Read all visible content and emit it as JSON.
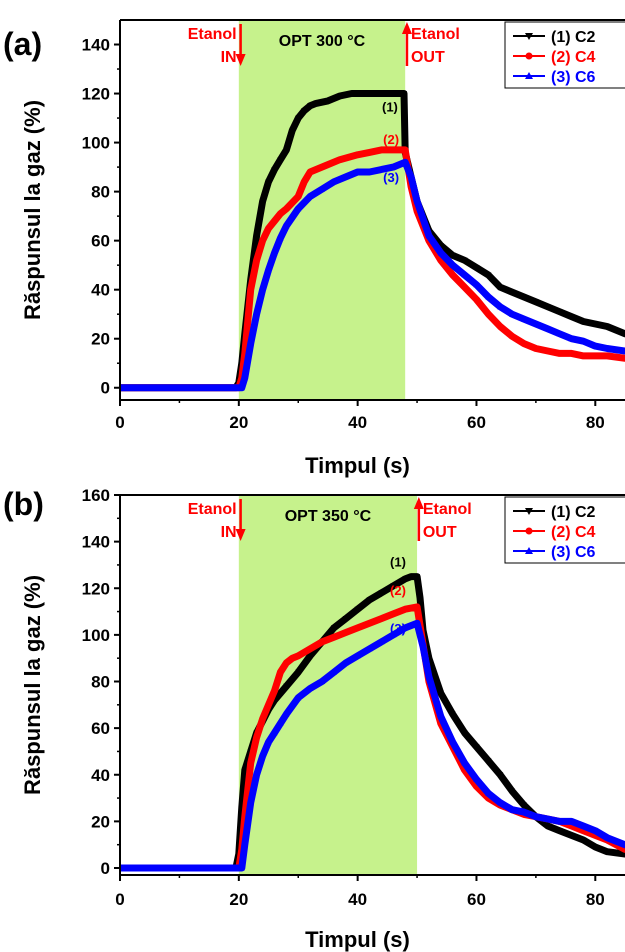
{
  "chart_data": [
    {
      "type": "line",
      "panel_label": "(a)",
      "xlabel": "Timpul (s)",
      "ylabel": "Răspunsul la gaz (%)",
      "xlim": [
        0,
        85
      ],
      "ylim": [
        -5,
        150
      ],
      "xticks": [
        0,
        20,
        40,
        60,
        80
      ],
      "yticks": [
        0,
        20,
        40,
        60,
        80,
        100,
        120,
        140
      ],
      "shaded_region": {
        "x": [
          20,
          48
        ],
        "color": "#c6f28c",
        "label": "OPT 300 °C"
      },
      "markers": {
        "in": {
          "x": 20.3,
          "label_top": "Etanol",
          "label_bottom": "IN"
        },
        "out": {
          "x": 48.3,
          "label_top": "Etanol",
          "label_bottom": "OUT"
        }
      },
      "series": [
        {
          "name": "(1) C2",
          "annotation": "(1)",
          "color": "#000000",
          "marker": "down-triangle",
          "x": [
            0,
            19.5,
            20,
            20.5,
            21,
            22,
            23,
            24,
            25,
            26,
            27,
            28,
            29,
            30,
            31,
            32,
            33,
            35,
            37,
            39,
            40,
            42,
            44,
            46,
            47,
            47.8,
            48,
            49,
            50,
            52,
            54,
            56,
            58,
            60,
            62,
            64,
            66,
            68,
            70,
            72,
            74,
            76,
            78,
            80,
            82,
            85
          ],
          "y": [
            0,
            0,
            2,
            10,
            22,
            44,
            62,
            76,
            84,
            89,
            93,
            97,
            105,
            110,
            113,
            115,
            116,
            117,
            119,
            120,
            120,
            120,
            120,
            120,
            120,
            120,
            96,
            86,
            76,
            64,
            58,
            54,
            52,
            49,
            46,
            41,
            39,
            37,
            35,
            33,
            31,
            29,
            27,
            26,
            25,
            22
          ]
        },
        {
          "name": "(2) C4",
          "annotation": "(2)",
          "color": "#ff0000",
          "marker": "circle",
          "x": [
            0,
            20,
            20.5,
            21,
            22,
            23,
            24,
            25,
            26,
            27,
            28,
            30,
            31,
            32,
            33,
            35,
            37,
            40,
            42,
            44,
            46,
            48,
            49,
            50,
            52,
            54,
            56,
            58,
            60,
            62,
            64,
            66,
            68,
            70,
            72,
            74,
            76,
            78,
            80,
            82,
            85
          ],
          "y": [
            0,
            0,
            4,
            14,
            40,
            52,
            60,
            65,
            68,
            71,
            73,
            78,
            84,
            88,
            89,
            91,
            93,
            95,
            96,
            97,
            97,
            97,
            82,
            72,
            60,
            52,
            46,
            41,
            36,
            30,
            25,
            21,
            18,
            16,
            15,
            14,
            14,
            13,
            13,
            13,
            12
          ]
        },
        {
          "name": "(3) C6",
          "annotation": "(3)",
          "color": "#0000ff",
          "marker": "up-triangle",
          "x": [
            0,
            20.5,
            21,
            22,
            23,
            24,
            25,
            26,
            27,
            28,
            30,
            32,
            34,
            36,
            38,
            40,
            42,
            44,
            46,
            48,
            49,
            50,
            52,
            54,
            56,
            58,
            60,
            62,
            64,
            66,
            68,
            70,
            72,
            74,
            76,
            78,
            80,
            82,
            85
          ],
          "y": [
            0,
            0,
            4,
            18,
            30,
            40,
            48,
            55,
            61,
            66,
            73,
            78,
            81,
            84,
            86,
            88,
            88,
            89,
            90,
            92,
            86,
            76,
            62,
            55,
            50,
            46,
            42,
            37,
            33,
            30,
            28,
            26,
            24,
            22,
            20,
            19,
            17,
            16,
            15
          ]
        }
      ]
    },
    {
      "type": "line",
      "panel_label": "(b)",
      "xlabel": "Timpul (s)",
      "ylabel": "Răspunsul la gaz (%)",
      "xlim": [
        0,
        85
      ],
      "ylim": [
        -3,
        160
      ],
      "xticks": [
        0,
        20,
        40,
        60,
        80
      ],
      "yticks": [
        0,
        20,
        40,
        60,
        80,
        100,
        120,
        140,
        160
      ],
      "shaded_region": {
        "x": [
          20,
          50
        ],
        "color": "#c6f28c",
        "label": "OPT 350 °C"
      },
      "markers": {
        "in": {
          "x": 20.3,
          "label_top": "Etanol",
          "label_bottom": "IN"
        },
        "out": {
          "x": 50.3,
          "label_top": "Etanol",
          "label_bottom": "OUT"
        }
      },
      "series": [
        {
          "name": "(1) C2",
          "annotation": "(1)",
          "color": "#000000",
          "marker": "down-triangle",
          "x": [
            0,
            19.5,
            20,
            20.5,
            21,
            22,
            23,
            24,
            25,
            26,
            28,
            30,
            32,
            34,
            36,
            38,
            40,
            42,
            44,
            46,
            48,
            49,
            50,
            50.5,
            51,
            52,
            54,
            56,
            58,
            60,
            62,
            64,
            66,
            68,
            70,
            72,
            74,
            76,
            78,
            80,
            82,
            85
          ],
          "y": [
            0,
            0,
            6,
            26,
            42,
            50,
            58,
            63,
            68,
            72,
            78,
            84,
            91,
            97,
            103,
            107,
            111,
            115,
            118,
            121,
            124,
            125,
            125,
            116,
            102,
            90,
            75,
            66,
            58,
            52,
            46,
            40,
            33,
            27,
            22,
            18,
            16,
            14,
            12,
            9,
            7,
            6
          ]
        },
        {
          "name": "(2) C4",
          "annotation": "(2)",
          "color": "#ff0000",
          "marker": "circle",
          "x": [
            0,
            20,
            20.5,
            21,
            22,
            23,
            24,
            25,
            26,
            27,
            28,
            29,
            30,
            32,
            34,
            36,
            38,
            40,
            42,
            44,
            46,
            48,
            50,
            51,
            52,
            54,
            56,
            58,
            60,
            62,
            64,
            66,
            68,
            70,
            72,
            74,
            76,
            78,
            80,
            82,
            85
          ],
          "y": [
            0,
            0,
            8,
            22,
            45,
            56,
            64,
            70,
            76,
            84,
            88,
            90,
            91,
            94,
            97,
            99,
            101,
            103,
            105,
            107,
            109,
            111,
            112,
            96,
            80,
            62,
            52,
            42,
            35,
            30,
            27,
            25,
            23,
            22,
            21,
            20,
            18,
            16,
            14,
            12,
            8
          ]
        },
        {
          "name": "(3) C6",
          "annotation": "(3)",
          "color": "#0000ff",
          "marker": "up-triangle",
          "x": [
            0,
            20.5,
            21,
            22,
            23,
            24,
            25,
            26,
            27,
            28,
            30,
            32,
            34,
            36,
            38,
            40,
            42,
            44,
            46,
            48,
            50,
            51,
            52,
            54,
            56,
            58,
            60,
            62,
            64,
            66,
            68,
            70,
            72,
            74,
            76,
            78,
            80,
            82,
            85
          ],
          "y": [
            0,
            0,
            10,
            28,
            40,
            48,
            54,
            58,
            62,
            66,
            73,
            77,
            80,
            84,
            88,
            91,
            94,
            97,
            100,
            103,
            105,
            95,
            82,
            65,
            54,
            45,
            38,
            32,
            28,
            25,
            24,
            22,
            21,
            20,
            20,
            18,
            16,
            13,
            10
          ]
        }
      ]
    }
  ]
}
